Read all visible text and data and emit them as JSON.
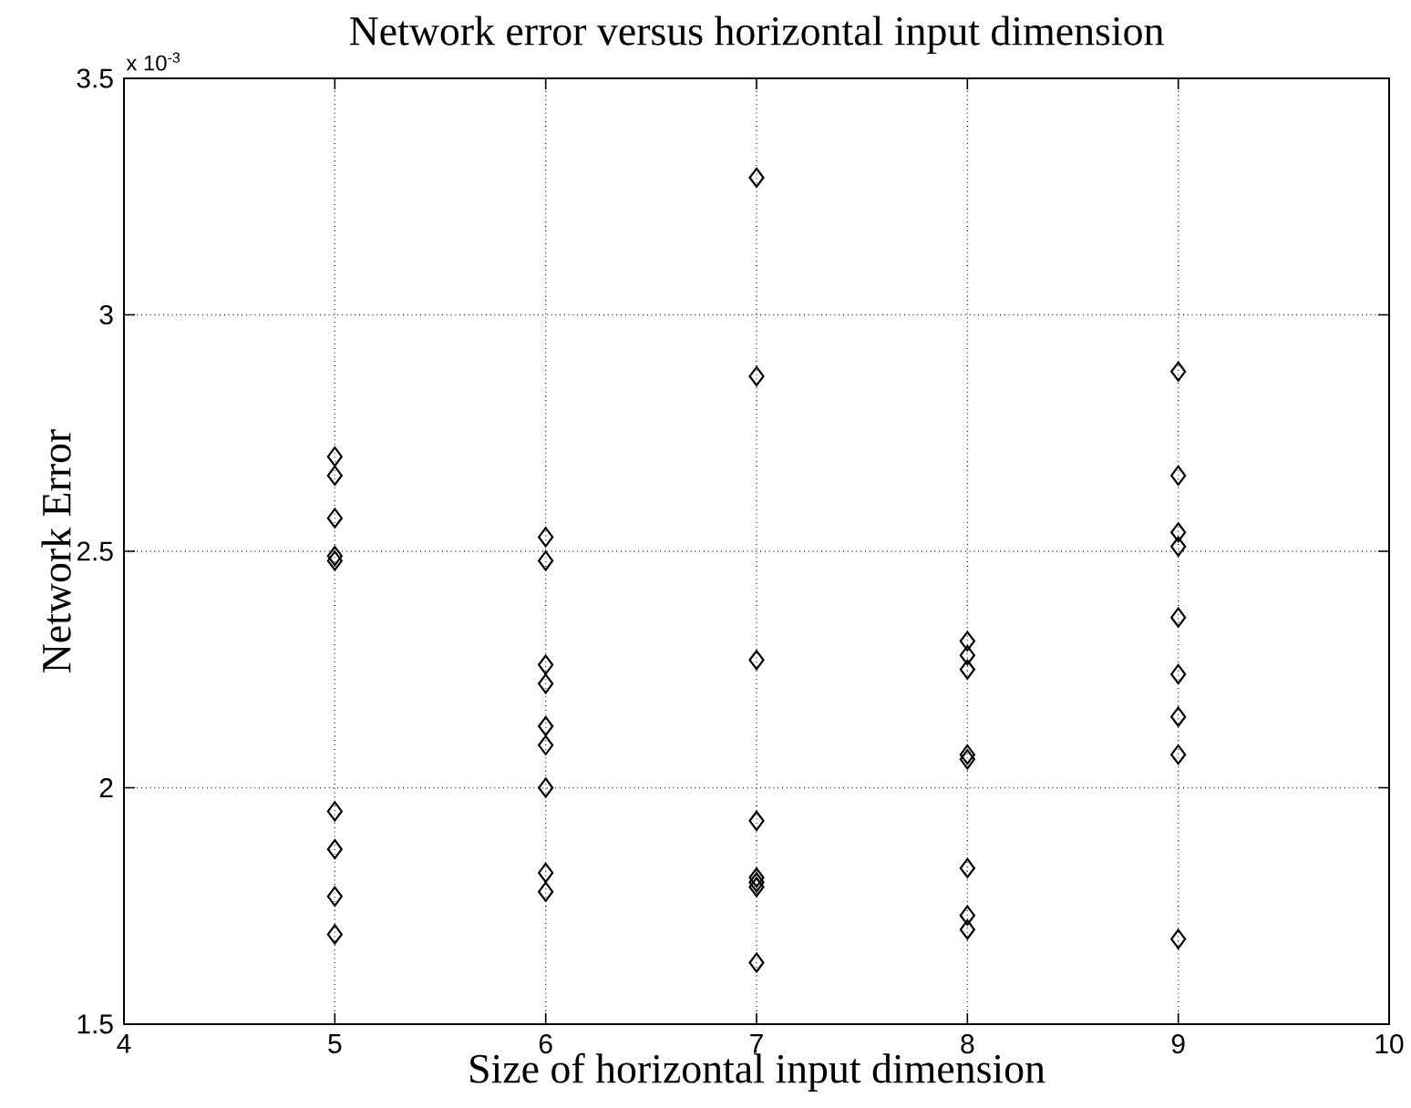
{
  "chart_data": {
    "type": "scatter",
    "title": "Network error versus horizontal input dimension",
    "xlabel": "Size of horizontal input dimension",
    "ylabel": "Network Error",
    "annotations": [
      "x 10$^{-3}$"
    ],
    "x": [
      5,
      5,
      5,
      5,
      5,
      5,
      5,
      5,
      5,
      6,
      6,
      6,
      6,
      6,
      6,
      6,
      6,
      6,
      7,
      7,
      7,
      7,
      7,
      7,
      7,
      7,
      8,
      8,
      8,
      8,
      8,
      8,
      8,
      8,
      9,
      9,
      9,
      9,
      9,
      9,
      9,
      9,
      9
    ],
    "values": [
      2.7,
      2.66,
      2.57,
      2.49,
      2.48,
      1.95,
      1.87,
      1.77,
      1.69,
      2.53,
      2.48,
      2.26,
      2.22,
      2.13,
      2.09,
      2.0,
      1.82,
      1.78,
      3.29,
      2.87,
      2.27,
      1.93,
      1.81,
      1.8,
      1.79,
      1.63,
      2.31,
      2.28,
      2.25,
      2.07,
      2.06,
      1.83,
      1.73,
      1.7,
      2.88,
      2.66,
      2.54,
      2.51,
      2.36,
      2.24,
      2.15,
      2.07,
      1.68
    ],
    "color": "#000000",
    "marker": "diamond",
    "xlim": [
      4,
      10
    ],
    "ylim": [
      1.5,
      3.5
    ],
    "xticks": [
      4,
      5,
      6,
      7,
      8,
      9,
      10
    ],
    "yticks": [
      1.5,
      2,
      2.5,
      3,
      3.5
    ],
    "grid": true
  }
}
